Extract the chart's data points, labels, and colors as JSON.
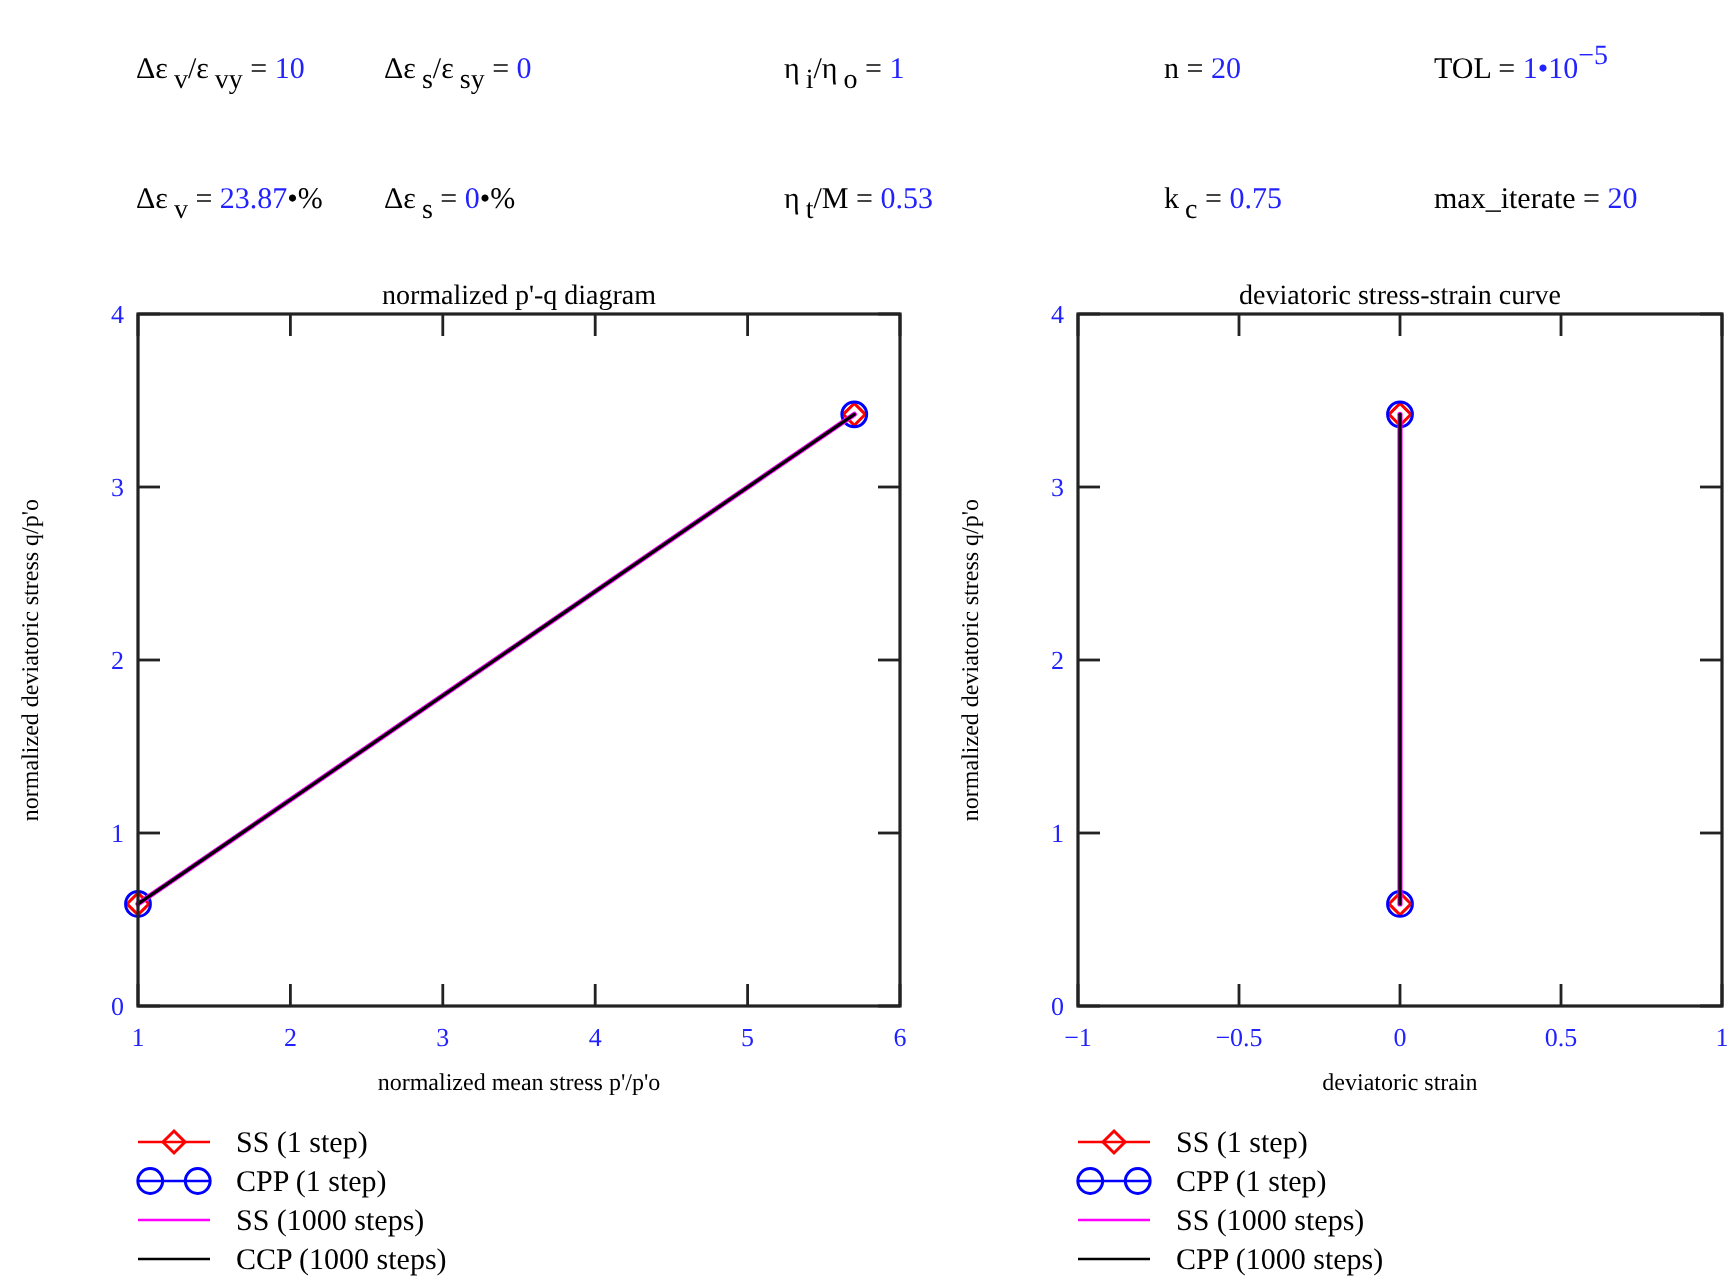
{
  "chart_data": [
    {
      "type": "other",
      "annotations": [
        "Δε$_{v}$/ε$_{vy}$ = 10",
        "Δε$_{s}$/ε$_{sy}$ = 0",
        "η$_{i}$/η$_{o}$ = 1",
        "n = 20",
        "TOL = 1•10$^{−5}$",
        "Δε$_{v}$ = 23.87•%",
        "Δε$_{s}$ = 0•%",
        "η$_{t}$/M = 0.53",
        "k$_{c}$ = 0.75",
        "max_iterate = 20"
      ]
    },
    {
      "type": "line",
      "title": "normalized p'-q diagram",
      "xlabel": "normalized mean stress p'/p'o",
      "ylabel": "normalized deviatoric stress q/p'o",
      "xlim": [
        1,
        6
      ],
      "ylim": [
        0,
        4
      ],
      "xticks": [
        1,
        2,
        3,
        4,
        5,
        6
      ],
      "yticks": [
        0,
        1,
        2,
        3,
        4
      ],
      "legend": "bottom",
      "series": [
        {
          "name": "SS (1 step)",
          "type": "scatter",
          "color": "#ff0000",
          "x": [
            1,
            5.7
          ],
          "values": [
            0.59,
            3.42
          ],
          "marker": "diamond"
        },
        {
          "name": "CPP (1 step)",
          "type": "scatter",
          "color": "#0000ff",
          "x": [
            1,
            5.7
          ],
          "values": [
            0.59,
            3.42
          ],
          "marker": "circle"
        },
        {
          "name": "SS (1000 steps)",
          "color": "#ff00ff",
          "x": [
            1,
            5.7
          ],
          "values": [
            0.59,
            3.42
          ]
        },
        {
          "name": "CCP (1000 steps)",
          "color": "#000000",
          "x": [
            1,
            5.7
          ],
          "values": [
            0.59,
            3.42
          ]
        }
      ]
    },
    {
      "type": "line",
      "title": "deviatoric stress-strain curve",
      "xlabel": "deviatoric strain",
      "ylabel": "normalized deviatoric stress q/p'o",
      "xlim": [
        -1,
        1
      ],
      "ylim": [
        0,
        4
      ],
      "xticks": [
        {
          "value": -1,
          "label": "−1"
        },
        {
          "value": -0.5,
          "label": "−0.5"
        },
        0,
        0.5,
        1
      ],
      "yticks": [
        0,
        1,
        2,
        3,
        4
      ],
      "legend": "bottom",
      "series": [
        {
          "name": "SS (1 step)",
          "type": "scatter",
          "color": "#ff0000",
          "x": [
            0,
            0
          ],
          "values": [
            0.59,
            3.42
          ],
          "marker": "diamond"
        },
        {
          "name": "CPP (1 step)",
          "type": "scatter",
          "color": "#0000ff",
          "x": [
            0,
            0
          ],
          "values": [
            0.59,
            3.42
          ],
          "marker": "circle"
        },
        {
          "name": "SS (1000 steps)",
          "color": "#ff00ff",
          "x": [
            0,
            0
          ],
          "values": [
            0.59,
            3.42
          ]
        },
        {
          "name": "CPP (1000 steps)",
          "color": "#000000",
          "x": [
            0,
            0
          ],
          "values": [
            0.59,
            3.42
          ]
        }
      ]
    }
  ]
}
